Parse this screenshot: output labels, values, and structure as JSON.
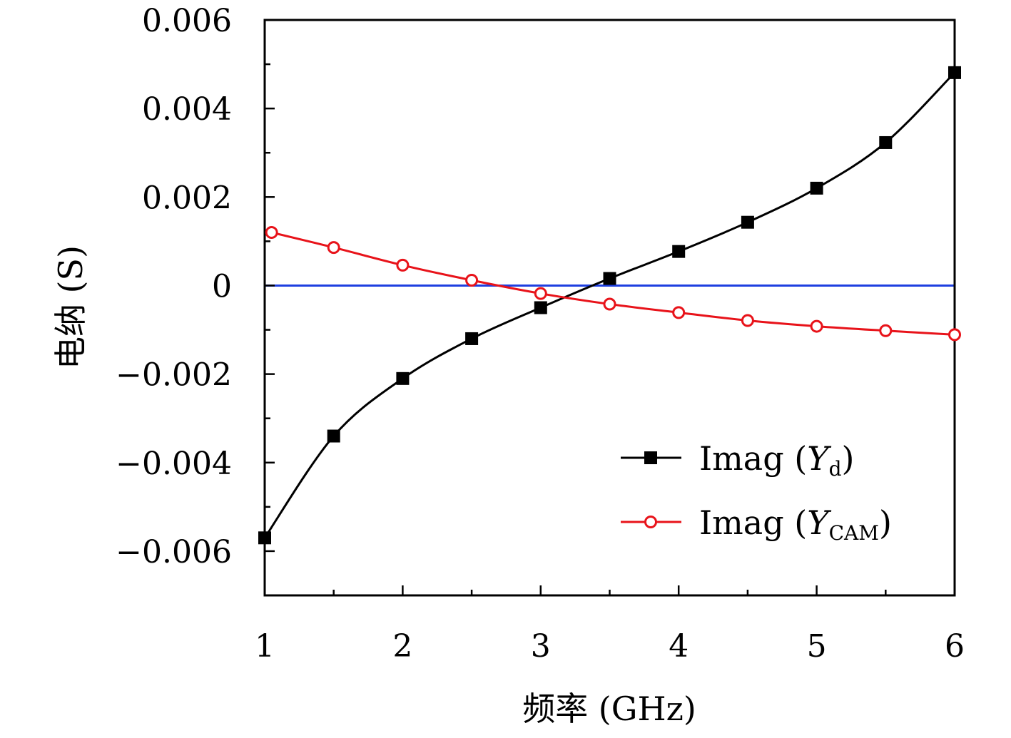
{
  "chart_data": {
    "type": "line",
    "xlabel": "频率 (GHz)",
    "ylabel": "电纳 (S)",
    "xlim": [
      1,
      6
    ],
    "ylim": [
      -0.007,
      0.006
    ],
    "x_ticks": [
      1,
      2,
      3,
      4,
      5,
      6
    ],
    "x_tick_labels": [
      "1",
      "2",
      "3",
      "4",
      "5",
      "6"
    ],
    "x_minor_ticks": [
      1.5,
      2.5,
      3.5,
      4.5,
      5.5
    ],
    "y_ticks": [
      0.006,
      0.004,
      0.002,
      0,
      -0.002,
      -0.004,
      -0.006
    ],
    "y_tick_labels": [
      "0.006",
      "0.004",
      "0.002",
      "0",
      "−0.002",
      "−0.004",
      "−0.006"
    ],
    "y_minor_ticks": [
      0.005,
      0.003,
      0.001,
      -0.001,
      -0.003,
      -0.005
    ],
    "legend_position": "bottom-right",
    "series": [
      {
        "name": "Imag (Yd)",
        "legend_prefix": "Imag (",
        "legend_var": "Y",
        "legend_sub": "d",
        "legend_suffix": ")",
        "color": "#000000",
        "marker": "filled-square",
        "x": [
          1,
          1.5,
          2,
          2.5,
          3,
          3.5,
          4,
          4.5,
          5,
          5.5,
          6
        ],
        "values": [
          -0.0057,
          -0.0034,
          -0.0021,
          -0.0012,
          -0.0005,
          0.00016,
          0.00077,
          0.00143,
          0.0022,
          0.00323,
          0.00481
        ]
      },
      {
        "name": "Imag (YCAM)",
        "legend_prefix": "Imag (",
        "legend_var": "Y",
        "legend_sub": "CAM",
        "legend_suffix": ")",
        "color": "#e8131a",
        "marker": "open-circle",
        "x": [
          1.05,
          1.5,
          2,
          2.5,
          3,
          3.5,
          4,
          4.5,
          5,
          5.5,
          6
        ],
        "values": [
          0.0012,
          0.00086,
          0.00046,
          0.00012,
          -0.00018,
          -0.00042,
          -0.00061,
          -0.00079,
          -0.00092,
          -0.00102,
          -0.00111
        ]
      }
    ],
    "reference_line": {
      "y": 0,
      "color": "#1e3fe0"
    }
  }
}
